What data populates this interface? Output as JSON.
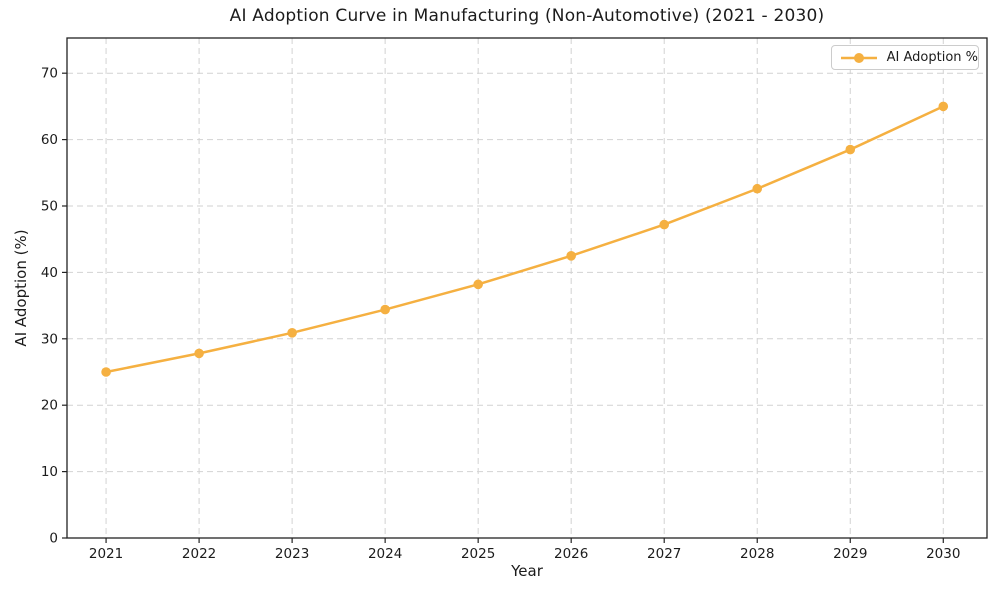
{
  "chart_data": {
    "type": "line",
    "title": "AI Adoption Curve in Manufacturing (Non-Automotive) (2021 - 2030)",
    "xlabel": "Year",
    "ylabel": "AI Adoption (%)",
    "categories": [
      "2021",
      "2022",
      "2023",
      "2024",
      "2025",
      "2026",
      "2027",
      "2028",
      "2029",
      "2030"
    ],
    "x": [
      2021,
      2022,
      2023,
      2024,
      2025,
      2026,
      2027,
      2028,
      2029,
      2030
    ],
    "series": [
      {
        "name": "AI Adoption %",
        "values": [
          25.0,
          27.8,
          30.9,
          34.4,
          38.2,
          42.5,
          47.2,
          52.6,
          58.5,
          65.0
        ]
      }
    ],
    "yticks": [
      0,
      10,
      20,
      30,
      40,
      50,
      60,
      70
    ],
    "xlim": [
      2020.58,
      2030.47
    ],
    "ylim": [
      0,
      75.3
    ],
    "grid": true,
    "grid_style": "dashed",
    "legend_position": "upper right",
    "line_color": "#F5B041",
    "marker": "circle",
    "grid_color": "#d2d2d2",
    "axis_color": "#222222",
    "tick_label_color": "#1c1c1c",
    "background_color": "#ffffff"
  }
}
